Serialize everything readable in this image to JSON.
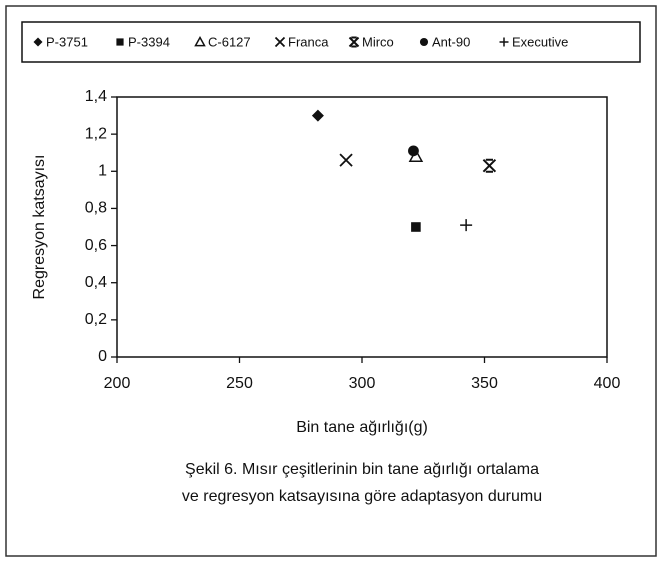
{
  "chart_data": {
    "type": "scatter",
    "series": [
      {
        "name": "P-3751",
        "marker": "diamond",
        "color": "#111",
        "x": [
          282
        ],
        "values": [
          1.3
        ]
      },
      {
        "name": "P-3394",
        "marker": "square",
        "color": "#111",
        "x": [
          322
        ],
        "values": [
          0.7
        ]
      },
      {
        "name": "C-6127",
        "marker": "triangle",
        "color": "#111",
        "x": [
          322
        ],
        "values": [
          1.08
        ]
      },
      {
        "name": "Franca",
        "marker": "x",
        "color": "#111",
        "x": [
          293.5
        ],
        "values": [
          1.06
        ]
      },
      {
        "name": "Mirco",
        "marker": "star-x",
        "color": "#111",
        "x": [
          352
        ],
        "values": [
          1.03
        ]
      },
      {
        "name": "Ant-90",
        "marker": "circle",
        "color": "#111",
        "x": [
          321
        ],
        "values": [
          1.11
        ]
      },
      {
        "name": "Executive",
        "marker": "plus",
        "color": "#111",
        "x": [
          342.5
        ],
        "values": [
          0.71
        ]
      }
    ],
    "xlabel": "Bin tane ağırlığı(g)",
    "ylabel": "Regresyon katsayısı",
    "xlim": [
      200,
      400
    ],
    "xticks": [
      200,
      250,
      300,
      350,
      400
    ],
    "ylim": [
      0,
      1.4
    ],
    "yticks": [
      0,
      {
        "value": 0.2,
        "label": "0,2"
      },
      {
        "value": 0.4,
        "label": "0,4"
      },
      {
        "value": 0.6,
        "label": "0,6"
      },
      {
        "value": 0.8,
        "label": "0,8"
      },
      1,
      {
        "value": 1.2,
        "label": "1,2"
      },
      {
        "value": 1.4,
        "label": "1,4"
      }
    ],
    "caption": [
      "Şekil 6. Mısır çeşitlerinin bin tane ağırlığı ortalama",
      "ve regresyon katsayısına göre adaptasyon durumu"
    ]
  }
}
